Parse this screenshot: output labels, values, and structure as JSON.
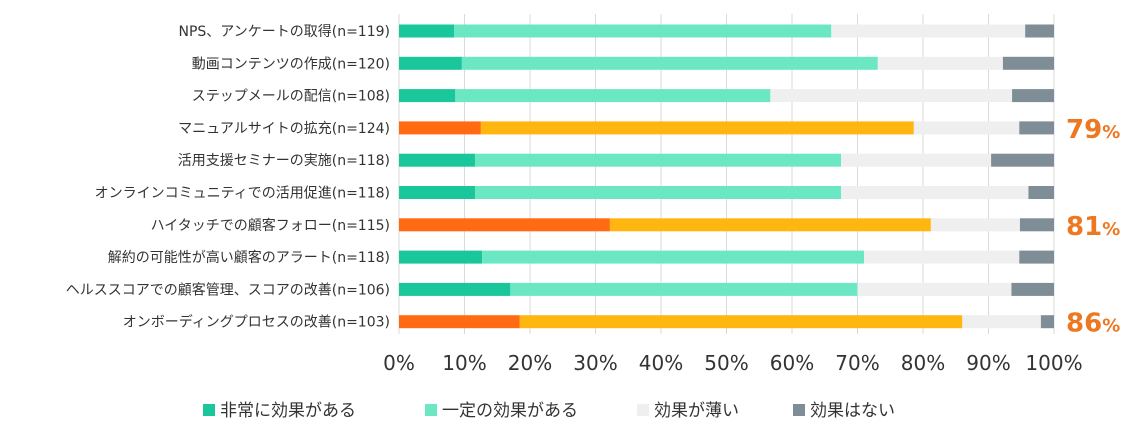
{
  "chart_data": {
    "type": "bar",
    "orientation": "horizontal",
    "stacked": true,
    "percent": true,
    "categories": [
      "NPS、アンケートの取得(n=119)",
      "動画コンテンツの作成(n=120)",
      "ステップメールの配信(n=108)",
      "マニュアルサイトの拡充(n=124)",
      "活用支援セミナーの実施(n=118)",
      "オンラインコミュニティでの活用促進(n=118)",
      "ハイタッチでの顧客フォロー(n=115)",
      "解約の可能性が高い顧客のアラート(n=118)",
      "ヘルススコアでの顧客管理、スコアの改善(n=106)",
      "オンボーディングプロセスの改善(n=103)"
    ],
    "series": [
      {
        "name": "非常に効果がある",
        "color": "#19c79a",
        "values": [
          8.4,
          9.6,
          8.6,
          12.5,
          11.6,
          11.6,
          32.2,
          12.7,
          17.0,
          18.4
        ]
      },
      {
        "name": "一定の効果がある",
        "color": "#6be8c3",
        "values": [
          57.6,
          63.5,
          48.1,
          66.1,
          55.9,
          55.9,
          49.0,
          58.3,
          53.0,
          67.6
        ]
      },
      {
        "name": "効果が薄い",
        "color": "#efefef",
        "values": [
          29.6,
          19.1,
          36.9,
          16.1,
          22.9,
          28.6,
          13.6,
          23.7,
          23.5,
          12.0
        ]
      },
      {
        "name": "効果はない",
        "color": "#7e8d96",
        "values": [
          4.4,
          7.8,
          6.4,
          5.3,
          9.6,
          3.9,
          5.2,
          5.3,
          6.5,
          2.0
        ]
      }
    ],
    "highlight": {
      "rows": [
        3,
        6,
        9
      ],
      "colors": [
        "#ff6a13",
        "#ffb611",
        "#efefef",
        "#7e8d96"
      ]
    },
    "callouts": [
      {
        "row": 3,
        "value": "79",
        "unit": "%"
      },
      {
        "row": 6,
        "value": "81",
        "unit": "%"
      },
      {
        "row": 9,
        "value": "86",
        "unit": "%"
      }
    ],
    "callout_color": "#ee7722",
    "xlim": [
      0,
      100
    ],
    "xticks": [
      0,
      10,
      20,
      30,
      40,
      50,
      60,
      70,
      80,
      90,
      100
    ],
    "tick_suffix": "%",
    "grid": true,
    "legend": "bottom"
  }
}
